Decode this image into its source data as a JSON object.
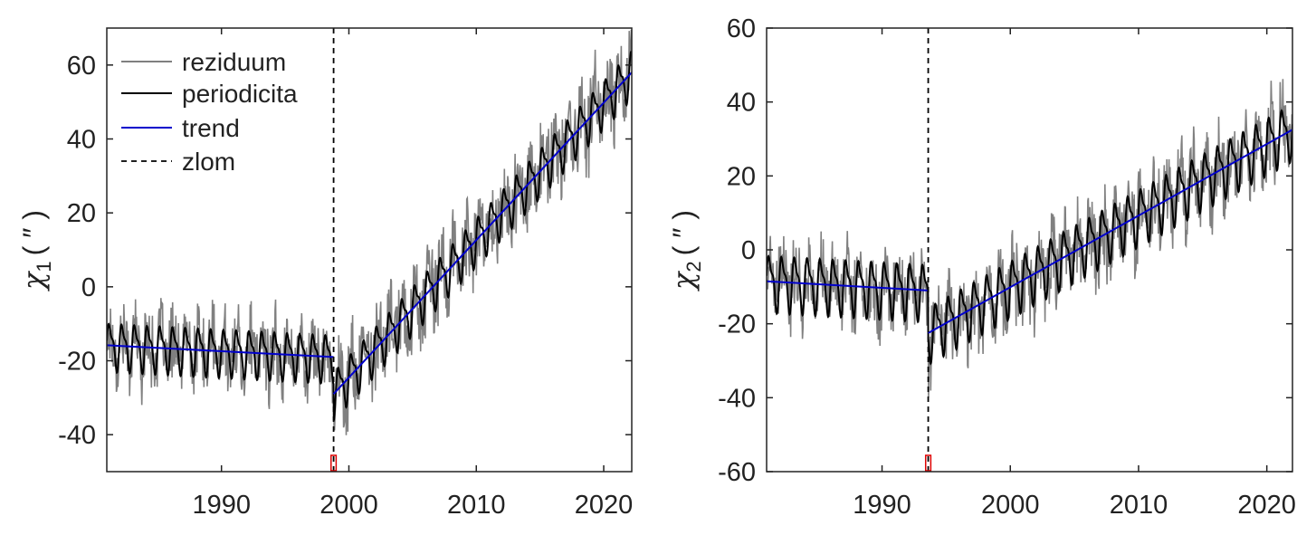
{
  "chart_data": [
    {
      "type": "line",
      "title": "",
      "xlabel": "",
      "ylabel": {
        "symbol": "χ",
        "subscript": "1",
        "unit": "( ″ )"
      },
      "xlim": [
        1981,
        2022.2
      ],
      "ylim": [
        -50,
        70
      ],
      "xticks": [
        1990,
        2000,
        2010,
        2020
      ],
      "yticks": [
        -40,
        -20,
        0,
        20,
        40,
        60
      ],
      "legend": {
        "location": "top-left",
        "entries": [
          "reziduum",
          "periodicita",
          "trend",
          "zlom"
        ]
      },
      "series": [
        {
          "name": "reziduum",
          "color": "#808080",
          "style": "solid"
        },
        {
          "name": "periodicita",
          "color": "#000000",
          "style": "solid"
        },
        {
          "name": "trend",
          "color": "#0000cc",
          "style": "solid"
        }
      ],
      "trend_segments": [
        {
          "x": [
            1981,
            1998.8
          ],
          "y": [
            -15.8,
            -19
          ]
        },
        {
          "x": [
            1998.8,
            2022.2
          ],
          "y": [
            -29,
            58
          ]
        }
      ],
      "breakpoint": {
        "name": "zlom",
        "x": 1998.8,
        "style": "dashed",
        "uncertainty": [
          1998.6,
          1999.0
        ],
        "uncertainty_color": "#dd0000"
      },
      "periodic_amplitude": 5.5,
      "periodic_period_years": 1.0,
      "grid": false
    },
    {
      "type": "line",
      "title": "",
      "xlabel": "",
      "ylabel": {
        "symbol": "χ",
        "subscript": "2",
        "unit": "( ″ )"
      },
      "xlim": [
        1981,
        2022
      ],
      "ylim": [
        -60,
        60
      ],
      "xticks": [
        1990,
        2000,
        2010,
        2020
      ],
      "yticks": [
        -60,
        -40,
        -20,
        0,
        20,
        40,
        60
      ],
      "legend": null,
      "series": [
        {
          "name": "reziduum",
          "color": "#808080",
          "style": "solid"
        },
        {
          "name": "periodicita",
          "color": "#000000",
          "style": "solid"
        },
        {
          "name": "trend",
          "color": "#0000cc",
          "style": "solid"
        }
      ],
      "trend_segments": [
        {
          "x": [
            1981,
            1993.6
          ],
          "y": [
            -8.5,
            -11
          ]
        },
        {
          "x": [
            1993.6,
            2022
          ],
          "y": [
            -22.5,
            32.5
          ]
        }
      ],
      "breakpoint": {
        "name": "zlom",
        "x": 1993.6,
        "style": "dashed",
        "uncertainty": [
          1993.4,
          1993.8
        ],
        "uncertainty_color": "#dd0000"
      },
      "periodic_amplitude": 6.5,
      "periodic_period_years": 1.0,
      "grid": false
    }
  ]
}
